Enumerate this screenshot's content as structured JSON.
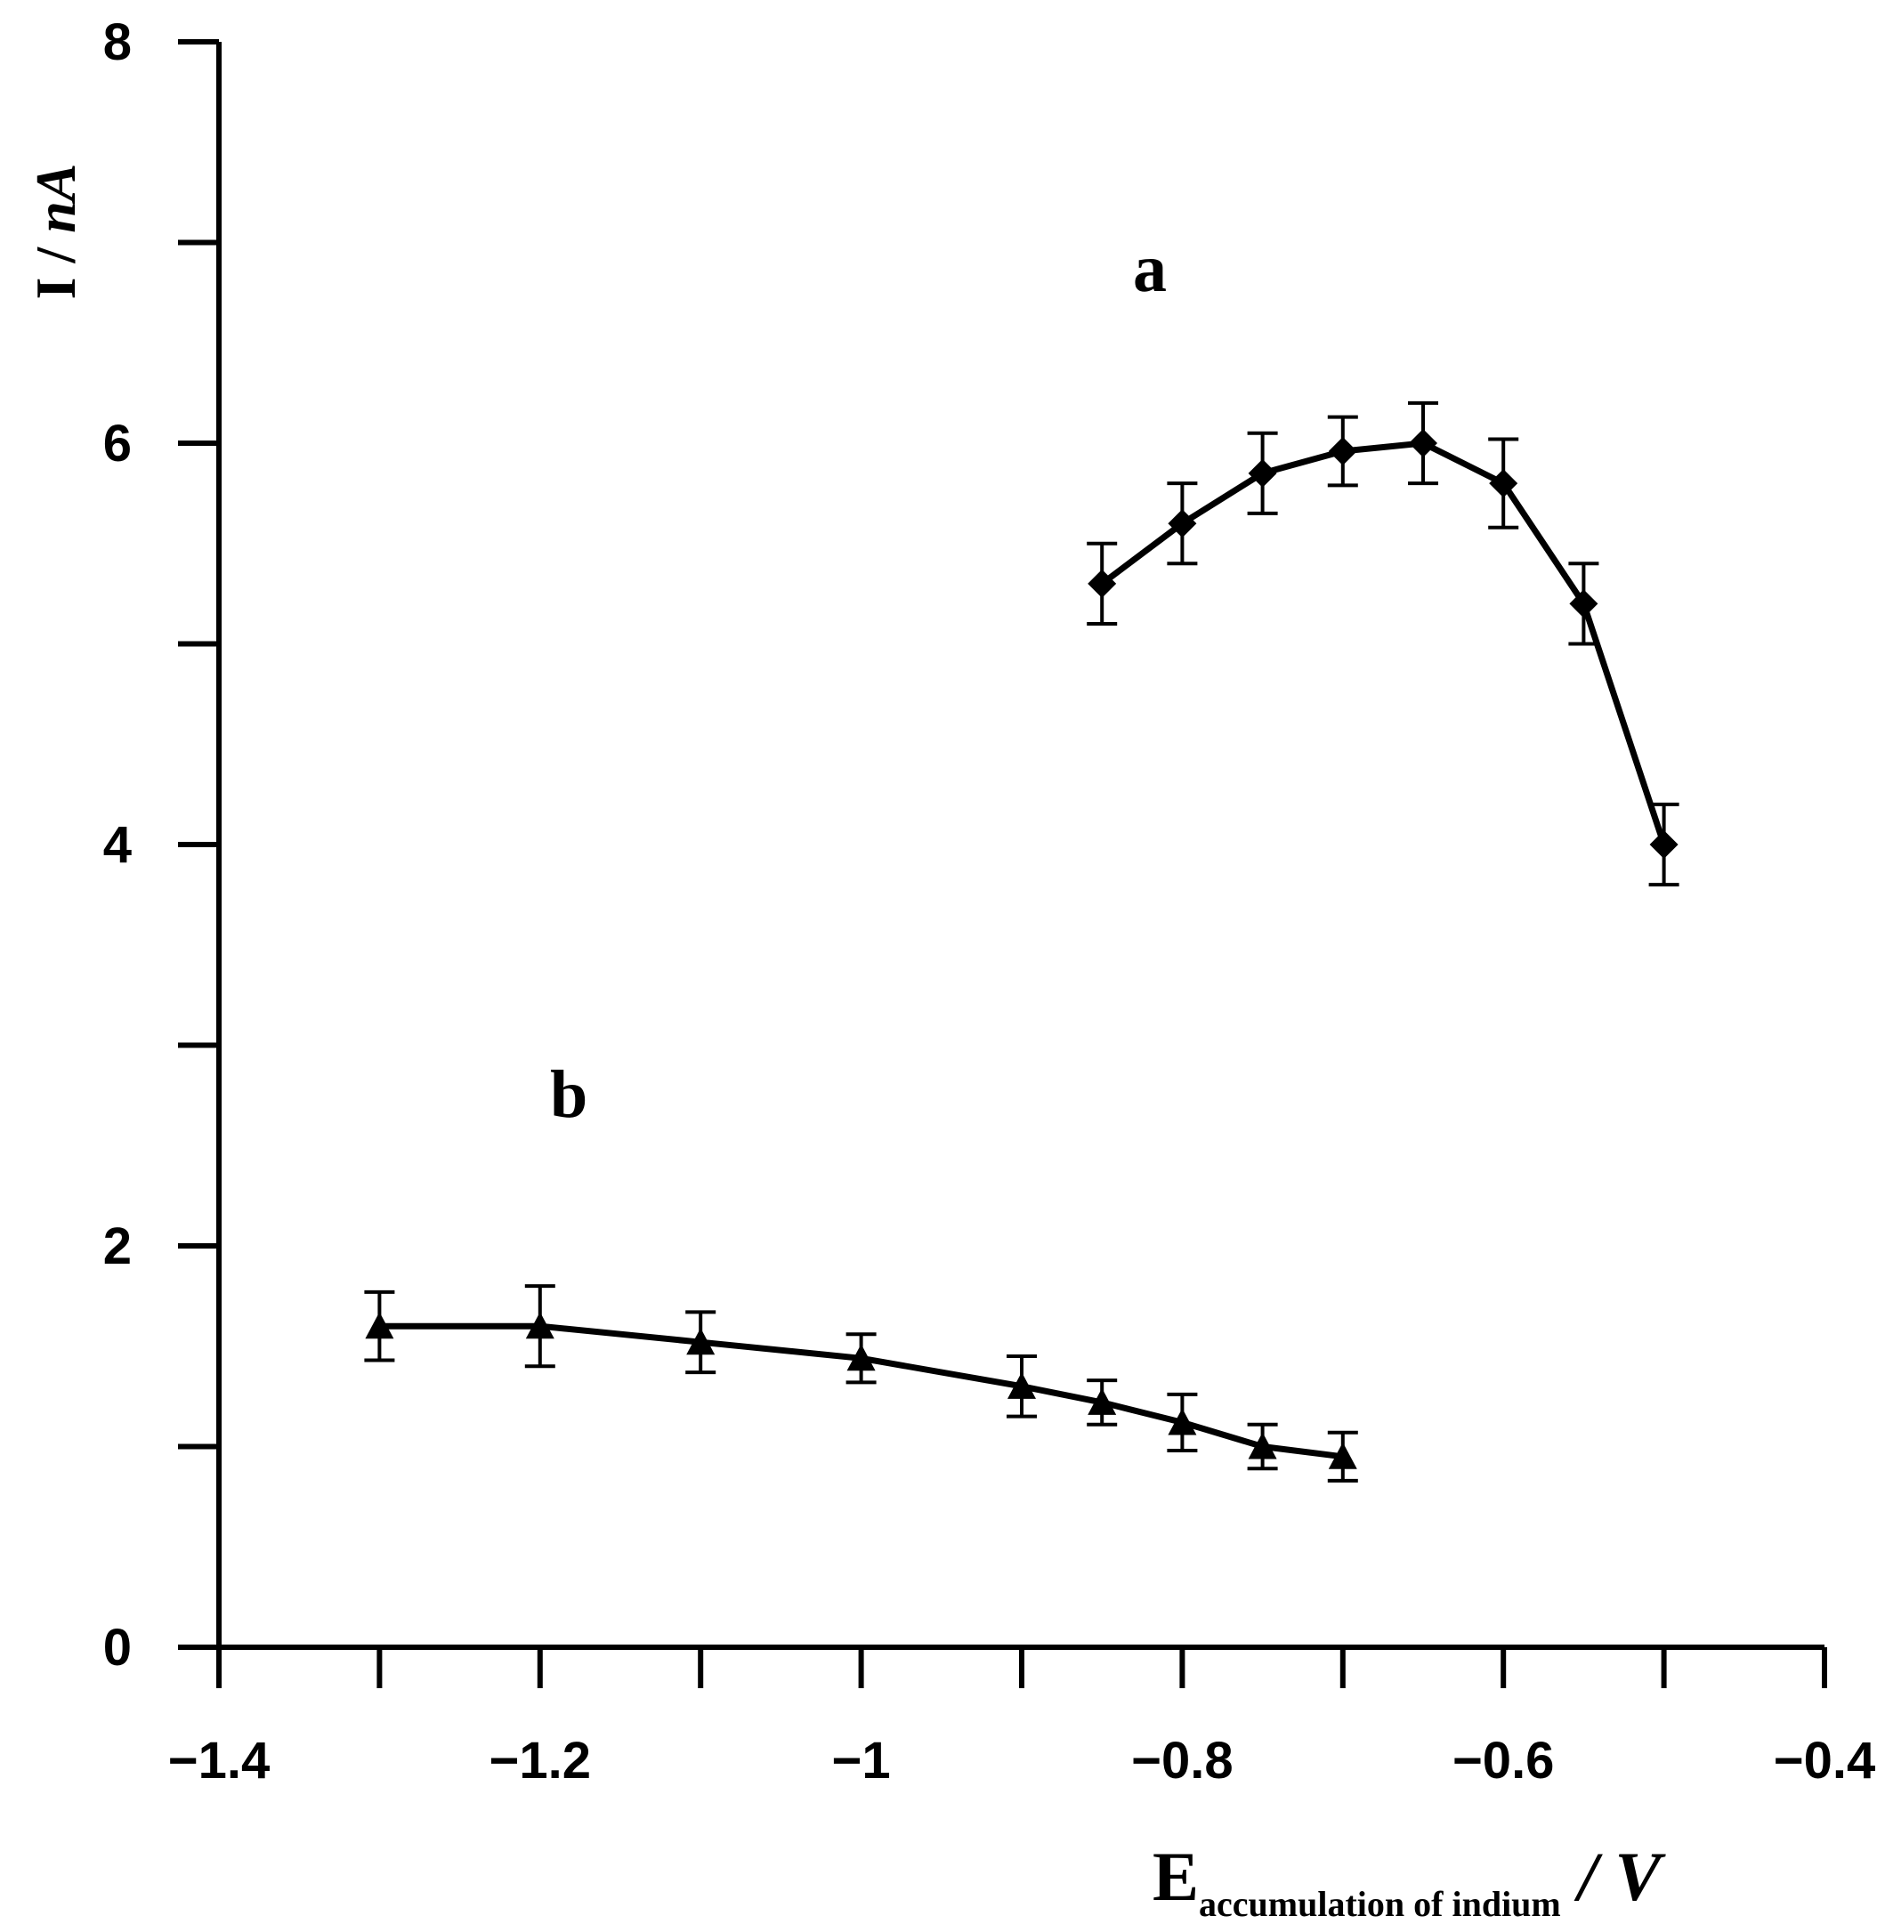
{
  "chart_data": {
    "type": "line",
    "xlabel": {
      "main": "E",
      "subscript": "accumulation of indium",
      "unit": " / V"
    },
    "ylabel": {
      "main": "I / ",
      "unit": "nA"
    },
    "xlim": [
      -1.4,
      -0.4
    ],
    "ylim": [
      0,
      8
    ],
    "x_tick_labels": [
      "−1.4",
      "−1.2",
      "−1",
      "−0.8",
      "−0.6",
      "−0.4"
    ],
    "x_tick_values": [
      -1.4,
      -1.2,
      -1.0,
      -0.8,
      -0.6,
      -0.4
    ],
    "x_minor_ticks": [
      -1.3,
      -1.1,
      -0.9,
      -0.7,
      -0.5
    ],
    "y_tick_labels": [
      "0",
      "2",
      "4",
      "6",
      "8"
    ],
    "y_tick_values": [
      0,
      2,
      4,
      6,
      8
    ],
    "y_minor_ticks": [
      1,
      3,
      5,
      7
    ],
    "grid": false,
    "series": [
      {
        "name": "a",
        "marker": "diamond",
        "x": [
          -0.85,
          -0.8,
          -0.75,
          -0.7,
          -0.65,
          -0.6,
          -0.55,
          -0.5
        ],
        "y": [
          5.3,
          5.6,
          5.85,
          5.96,
          6.0,
          5.8,
          5.2,
          4.0
        ],
        "error": [
          0.2,
          0.2,
          0.2,
          0.17,
          0.2,
          0.22,
          0.2,
          0.2
        ]
      },
      {
        "name": "b",
        "marker": "triangle",
        "x": [
          -1.3,
          -1.2,
          -1.1,
          -1.0,
          -0.9,
          -0.85,
          -0.8,
          -0.75,
          -0.7
        ],
        "y": [
          1.6,
          1.6,
          1.52,
          1.44,
          1.3,
          1.22,
          1.12,
          1.0,
          0.95
        ],
        "error": [
          0.17,
          0.2,
          0.15,
          0.12,
          0.15,
          0.11,
          0.14,
          0.11,
          0.12
        ]
      }
    ]
  }
}
